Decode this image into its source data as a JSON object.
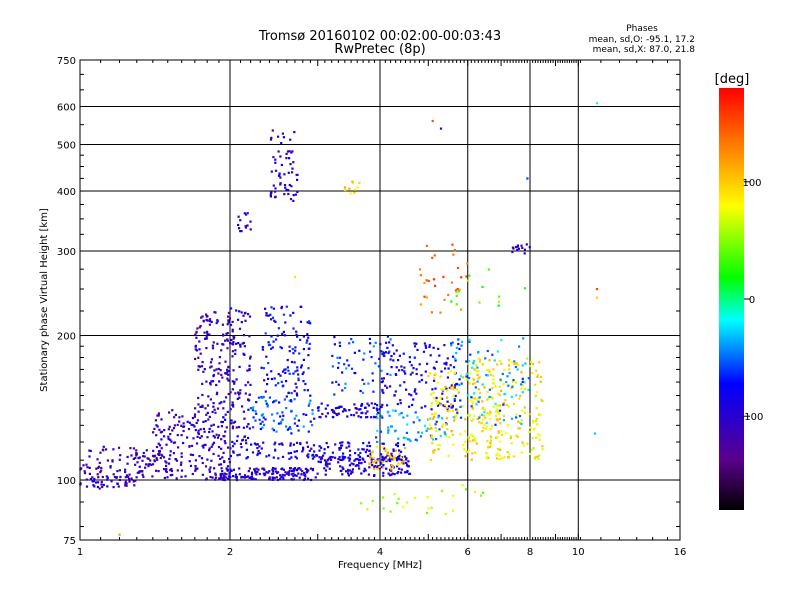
{
  "chart_data": {
    "type": "scatter",
    "title": "Tromsø 20160102 00:02:00-00:03:43",
    "subtitle": "RwPretec (8p)",
    "xlabel": "Frequency [MHz]",
    "ylabel": "Stationary phase Virtual Height [km]",
    "x_scale": "log",
    "y_scale": "log",
    "xlim": [
      1,
      16
    ],
    "ylim": [
      75,
      750
    ],
    "x_ticks": [
      1,
      2,
      4,
      6,
      8,
      10,
      16
    ],
    "x_tick_labels": [
      "1",
      "2",
      "4",
      "6",
      "8",
      "10",
      "16"
    ],
    "y_ticks": [
      75,
      100,
      200,
      300,
      400,
      500,
      600,
      750
    ],
    "y_tick_labels": [
      "75",
      "100",
      "200",
      "300",
      "400",
      "500",
      "600",
      "750"
    ],
    "grid": true,
    "stats": {
      "heading": "Phases",
      "line_o": "mean, sd,O: -95.1, 17.2",
      "line_x": "mean, sd,X:  87.0, 21.8"
    },
    "colorbar": {
      "label": "[deg]",
      "range": [
        -180,
        180
      ],
      "ticks": [
        100,
        0,
        -100
      ],
      "tick_labels": [
        "100",
        "0",
        "-100"
      ],
      "colormap": "rainbow (black-purple-blue-cyan-green-yellow-red)"
    },
    "clusters": [
      {
        "fmin": 1.0,
        "fmax": 1.3,
        "hmin": 96,
        "hmax": 104,
        "phase": -110,
        "count": 60
      },
      {
        "fmin": 1.0,
        "fmax": 1.45,
        "hmin": 104,
        "hmax": 118,
        "phase": -115,
        "count": 70
      },
      {
        "fmin": 1.3,
        "fmax": 2.0,
        "hmin": 100,
        "hmax": 112,
        "phase": -110,
        "count": 90
      },
      {
        "fmin": 1.4,
        "fmax": 2.0,
        "hmin": 112,
        "hmax": 140,
        "phase": -105,
        "count": 140
      },
      {
        "fmin": 1.7,
        "fmax": 2.05,
        "hmin": 140,
        "hmax": 225,
        "phase": -110,
        "count": 140
      },
      {
        "fmin": 2.0,
        "fmax": 2.2,
        "hmin": 120,
        "hmax": 230,
        "phase": -100,
        "count": 90
      },
      {
        "fmin": 1.9,
        "fmax": 3.0,
        "hmin": 100,
        "hmax": 106,
        "phase": -100,
        "count": 150
      },
      {
        "fmin": 3.0,
        "fmax": 4.6,
        "hmin": 102,
        "hmax": 112,
        "phase": -95,
        "count": 140
      },
      {
        "fmin": 2.0,
        "fmax": 4.5,
        "hmin": 110,
        "hmax": 120,
        "phase": -90,
        "count": 150
      },
      {
        "fmin": 2.2,
        "fmax": 3.0,
        "hmin": 125,
        "hmax": 150,
        "phase": -60,
        "count": 80
      },
      {
        "fmin": 2.3,
        "fmax": 2.9,
        "hmin": 150,
        "hmax": 230,
        "phase": -80,
        "count": 120
      },
      {
        "fmin": 2.4,
        "fmax": 2.75,
        "hmin": 380,
        "hmax": 540,
        "phase": -100,
        "count": 60
      },
      {
        "fmin": 2.05,
        "fmax": 2.2,
        "hmin": 330,
        "hmax": 360,
        "phase": -100,
        "count": 14
      },
      {
        "fmin": 3.0,
        "fmax": 4.0,
        "hmin": 135,
        "hmax": 145,
        "phase": -95,
        "count": 70
      },
      {
        "fmin": 3.2,
        "fmax": 4.2,
        "hmin": 150,
        "hmax": 200,
        "phase": -60,
        "count": 60
      },
      {
        "fmin": 3.4,
        "fmax": 3.7,
        "hmin": 395,
        "hmax": 420,
        "phase": 100,
        "count": 10
      },
      {
        "fmin": 3.9,
        "fmax": 5.5,
        "hmin": 120,
        "hmax": 140,
        "phase": -40,
        "count": 60
      },
      {
        "fmin": 4.0,
        "fmax": 5.8,
        "hmin": 140,
        "hmax": 195,
        "phase": -90,
        "count": 140
      },
      {
        "fmin": 3.8,
        "fmax": 4.5,
        "hmin": 105,
        "hmax": 118,
        "phase": 100,
        "count": 40
      },
      {
        "fmin": 4.8,
        "fmax": 6.0,
        "hmin": 220,
        "hmax": 320,
        "phase": 140,
        "count": 30
      },
      {
        "fmin": 5.0,
        "fmax": 7.0,
        "hmin": 110,
        "hmax": 170,
        "phase": 90,
        "count": 160
      },
      {
        "fmin": 6.0,
        "fmax": 8.5,
        "hmin": 110,
        "hmax": 180,
        "phase": 85,
        "count": 180
      },
      {
        "fmin": 5.5,
        "fmax": 8.0,
        "hmin": 130,
        "hmax": 200,
        "phase": -40,
        "count": 90
      },
      {
        "fmin": 7.3,
        "fmax": 8.0,
        "hmin": 295,
        "hmax": 310,
        "phase": -100,
        "count": 14
      },
      {
        "fmin": 3.6,
        "fmax": 6.5,
        "hmin": 85,
        "hmax": 100,
        "phase": 60,
        "count": 25
      },
      {
        "fmin": 5.5,
        "fmax": 8.0,
        "hmin": 230,
        "hmax": 280,
        "phase": 40,
        "count": 14
      }
    ],
    "isolated_points": [
      {
        "f": 10.9,
        "h": 610,
        "phase": -20
      },
      {
        "f": 10.9,
        "h": 250,
        "phase": 150
      },
      {
        "f": 10.9,
        "h": 240,
        "phase": 100
      },
      {
        "f": 10.8,
        "h": 125,
        "phase": -30
      },
      {
        "f": 7.9,
        "h": 425,
        "phase": -60
      },
      {
        "f": 5.3,
        "h": 540,
        "phase": -120
      },
      {
        "f": 5.1,
        "h": 560,
        "phase": 150
      },
      {
        "f": 2.65,
        "h": 385,
        "phase": -130
      },
      {
        "f": 1.2,
        "h": 77,
        "phase": 120
      },
      {
        "f": 2.7,
        "h": 265,
        "phase": 90
      }
    ]
  }
}
